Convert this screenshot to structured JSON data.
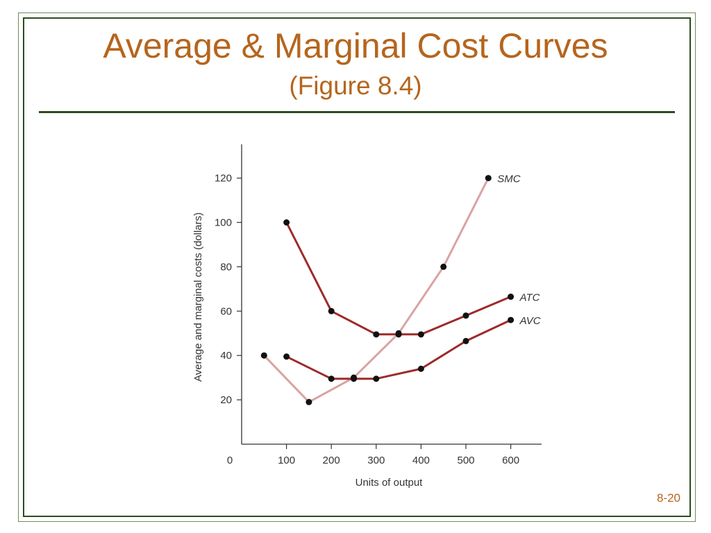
{
  "slide": {
    "title": "Average & Marginal Cost Curves",
    "subtitle": "(Figure 8.4)",
    "slide_number": "8-20",
    "title_color": "#b5651d",
    "rule_color": "#2e4a1f"
  },
  "chart_data": {
    "type": "line",
    "xlabel": "Units of output",
    "ylabel": "Average and marginal costs (dollars)",
    "xlim": [
      0,
      700
    ],
    "ylim": [
      0,
      135
    ],
    "xticks": [
      100,
      200,
      300,
      400,
      500,
      600
    ],
    "yticks": [
      20,
      40,
      60,
      80,
      100,
      120
    ],
    "origin_label": "0",
    "grid": false,
    "series": [
      {
        "name": "SMC",
        "color": "#d9a3a3",
        "points": [
          [
            50,
            40
          ],
          [
            150,
            19
          ],
          [
            250,
            30
          ],
          [
            350,
            50
          ],
          [
            450,
            80
          ],
          [
            550,
            120
          ]
        ]
      },
      {
        "name": "ATC",
        "color": "#9e2a2a",
        "points": [
          [
            100,
            100
          ],
          [
            200,
            60
          ],
          [
            300,
            49.5
          ],
          [
            350,
            49.5
          ],
          [
            400,
            49.5
          ],
          [
            500,
            58
          ],
          [
            600,
            66.5
          ]
        ]
      },
      {
        "name": "AVC",
        "color": "#9e2a2a",
        "points": [
          [
            100,
            39.5
          ],
          [
            200,
            29.5
          ],
          [
            250,
            29.5
          ],
          [
            300,
            29.5
          ],
          [
            400,
            34
          ],
          [
            500,
            46.5
          ],
          [
            600,
            56
          ]
        ]
      }
    ]
  }
}
